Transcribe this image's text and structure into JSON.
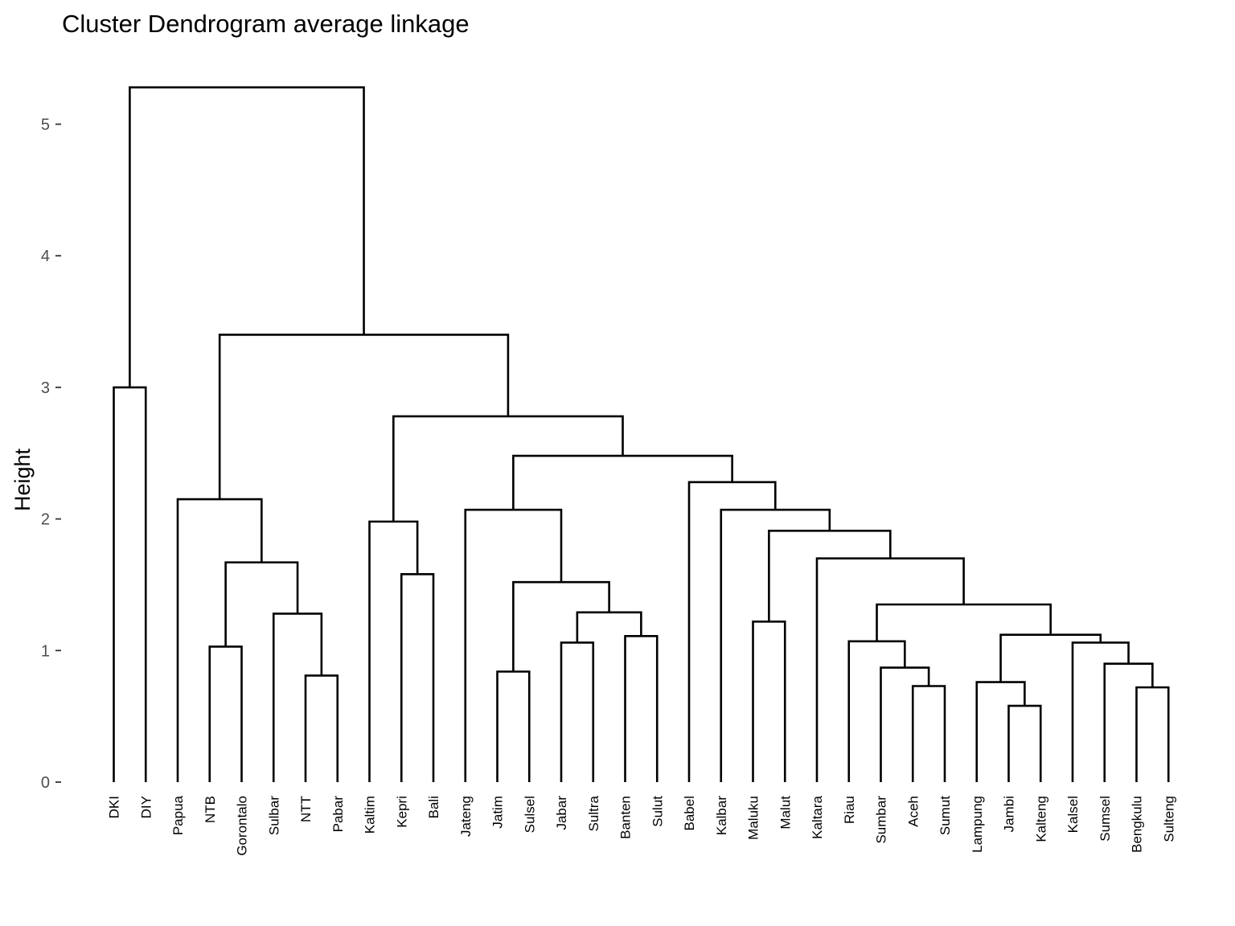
{
  "chart_data": {
    "type": "dendrogram",
    "title": "Cluster Dendrogram average linkage",
    "xlabel": "",
    "ylabel": "Height",
    "ylim": [
      0,
      5.3
    ],
    "yticks": [
      0,
      1,
      2,
      3,
      4,
      5
    ],
    "grid": false,
    "line_color": "#000000",
    "leaves": [
      "DKI",
      "DIY",
      "Papua",
      "NTB",
      "Gorontalo",
      "Sulbar",
      "NTT",
      "Pabar",
      "Kaltim",
      "Kepri",
      "Bali",
      "Jateng",
      "Jatim",
      "Sulsel",
      "Jabar",
      "Sultra",
      "Banten",
      "Sulut",
      "Babel",
      "Kalbar",
      "Maluku",
      "Malut",
      "Kaltara",
      "Riau",
      "Sumbar",
      "Aceh",
      "Sumut",
      "Lampung",
      "Jambi",
      "Kalteng",
      "Kalsel",
      "Sumsel",
      "Bengkulu",
      "Sulteng"
    ],
    "merges": [
      {
        "a": "Jambi",
        "b": "Kalteng",
        "height": 0.58
      },
      {
        "a": "Bengkulu",
        "b": "Sulteng",
        "height": 0.72
      },
      {
        "a": "Aceh",
        "b": "Sumut",
        "height": 0.73
      },
      {
        "a": "Lampung",
        "b": "Jambi+Kalteng",
        "height": 0.76
      },
      {
        "a": "NTT",
        "b": "Pabar",
        "height": 0.81
      },
      {
        "a": "Jatim",
        "b": "Sulsel",
        "height": 0.84
      },
      {
        "a": "Sumbar",
        "b": "Aceh+Sumut",
        "height": 0.87
      },
      {
        "a": "Sumsel",
        "b": "Bengkulu+Sulteng",
        "height": 0.9
      },
      {
        "a": "NTB",
        "b": "Gorontalo",
        "height": 1.03
      },
      {
        "a": "Jabar",
        "b": "Sultra",
        "height": 1.06
      },
      {
        "a": "Kalsel",
        "b": "Sumsel+Bengkulu+Sulteng",
        "height": 1.06
      },
      {
        "a": "Riau",
        "b": "Sumbar+Aceh+Sumut",
        "height": 1.07
      },
      {
        "a": "Banten",
        "b": "Sulut",
        "height": 1.11
      },
      {
        "a": "Lampung+Jambi+Kalteng",
        "b": "Kalsel+Sumsel+Bengkulu+Sulteng",
        "height": 1.12
      },
      {
        "a": "Maluku",
        "b": "Malut",
        "height": 1.22
      },
      {
        "a": "Sulbar",
        "b": "NTT+Pabar",
        "height": 1.28
      },
      {
        "a": "Jabar+Sultra",
        "b": "Banten+Sulut",
        "height": 1.29
      },
      {
        "a": "Riau+Sumbar+Aceh+Sumut",
        "b": "Lampung..Sulteng",
        "height": 1.35
      },
      {
        "a": "Jatim+Sulsel",
        "b": "Jabar+Sultra+Banten+Sulut",
        "height": 1.52
      },
      {
        "a": "Kepri",
        "b": "Bali",
        "height": 1.58
      },
      {
        "a": "NTB+Gorontalo",
        "b": "Sulbar+NTT+Pabar",
        "height": 1.67
      },
      {
        "a": "Kaltara",
        "b": "Riau..Sulteng",
        "height": 1.7
      },
      {
        "a": "Maluku+Malut",
        "b": "Kaltara..Sulteng",
        "height": 1.91
      },
      {
        "a": "Kaltim",
        "b": "Kepri+Bali",
        "height": 1.98
      },
      {
        "a": "Kalbar",
        "b": "Maluku..Sulteng",
        "height": 2.07
      },
      {
        "a": "Jateng",
        "b": "Jatim..Sulut",
        "height": 2.07
      },
      {
        "a": "Papua",
        "b": "NTB..Pabar",
        "height": 2.15
      },
      {
        "a": "Babel",
        "b": "Kalbar..Sulteng",
        "height": 2.28
      },
      {
        "a": "Jateng..Sulut",
        "b": "Babel..Sulteng",
        "height": 2.48
      },
      {
        "a": "Kaltim+Kepri+Bali",
        "b": "Jateng..Sulteng",
        "height": 2.78
      },
      {
        "a": "DKI",
        "b": "DIY",
        "height": 3.0
      },
      {
        "a": "Papua..Pabar",
        "b": "Kaltim..Sulteng",
        "height": 3.4
      },
      {
        "a": "DKI+DIY",
        "b": "Papua..Sulteng",
        "height": 5.28
      }
    ]
  }
}
